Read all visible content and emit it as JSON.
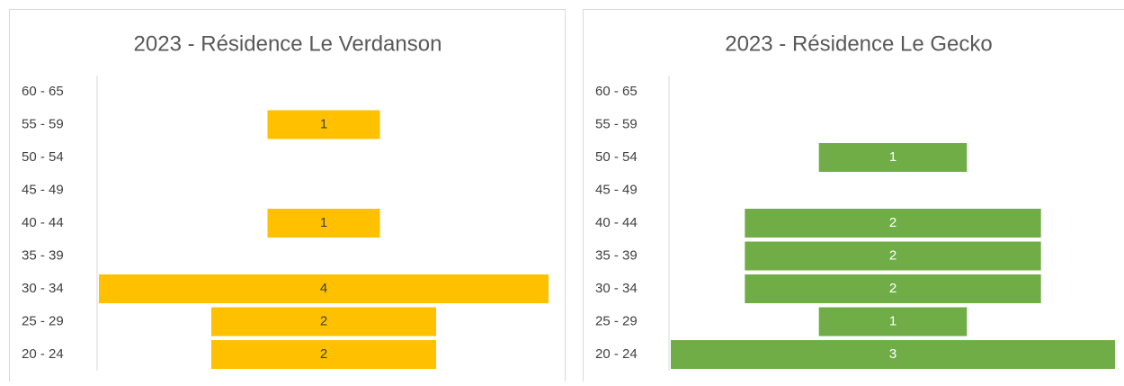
{
  "chart_data": [
    {
      "type": "bar",
      "orientation": "horizontal",
      "align": "center",
      "title": "2023 - Résidence Le Verdanson",
      "categories": [
        "20 - 24",
        "25 - 29",
        "30 - 34",
        "35 - 39",
        "40 - 44",
        "45 - 49",
        "50 - 54",
        "55 - 59",
        "60 - 65"
      ],
      "values": [
        2,
        2,
        4,
        0,
        1,
        0,
        0,
        1,
        0
      ],
      "color": "#FFC000",
      "label_color": "#404040"
    },
    {
      "type": "bar",
      "orientation": "horizontal",
      "align": "center",
      "title": "2023 - Résidence Le Gecko",
      "categories": [
        "20 - 24",
        "25 - 29",
        "30 - 34",
        "35 - 39",
        "40 - 44",
        "45 - 49",
        "50 - 54",
        "55 - 59",
        "60 - 65"
      ],
      "values": [
        3,
        1,
        2,
        2,
        2,
        0,
        1,
        0,
        0
      ],
      "color": "#70AD47",
      "label_color": "#ffffff"
    }
  ]
}
